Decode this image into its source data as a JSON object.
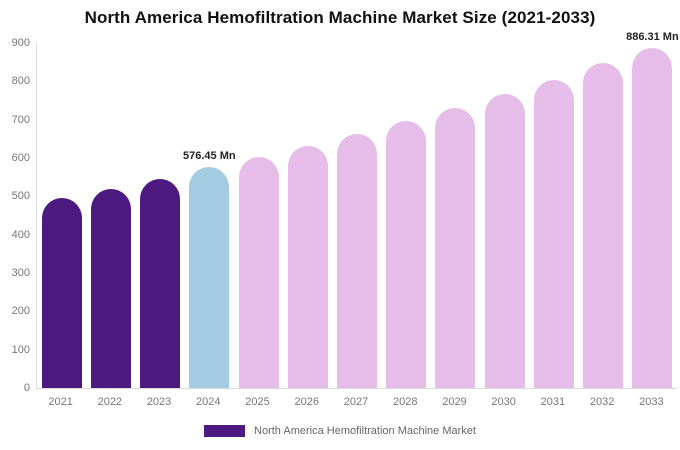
{
  "title": "North America Hemofiltration Machine Market Size (2021-2033)",
  "colors": {
    "historical_bar": "#4C1A80",
    "base_year_bar": "#A3CBE2",
    "forecast_bar": "#E6BCE8",
    "title_text": "#111111",
    "axis_text": "#777777",
    "point_label_text": "#222222",
    "legend_text": "#666666",
    "axis_line": "#dcdcdc"
  },
  "chart_data": {
    "type": "bar",
    "title": "North America Hemofiltration Machine Market Size (2021-2033)",
    "xlabel": "",
    "ylabel": "",
    "ylim": [
      0,
      900
    ],
    "ytick_step": 100,
    "ytick_labels": [
      "0",
      "100",
      "200",
      "300",
      "400",
      "500",
      "600",
      "700",
      "800",
      "900"
    ],
    "grid": false,
    "legend_position": "bottom",
    "categories": [
      "2021",
      "2022",
      "2023",
      "2024",
      "2025",
      "2026",
      "2027",
      "2028",
      "2029",
      "2030",
      "2031",
      "2032",
      "2033"
    ],
    "values": [
      495,
      519,
      545,
      576.45,
      603,
      631,
      663,
      697,
      730,
      767,
      803,
      848,
      886.31
    ],
    "bar_roles": [
      "historical",
      "historical",
      "historical",
      "base_year",
      "forecast",
      "forecast",
      "forecast",
      "forecast",
      "forecast",
      "forecast",
      "forecast",
      "forecast",
      "forecast"
    ],
    "point_labels": [
      "",
      "",
      "",
      "576.45 Mn",
      "",
      "",
      "",
      "",
      "",
      "",
      "",
      "",
      "886.31 Mn"
    ],
    "series": [
      {
        "name": "North America Hemofiltration Machine Market",
        "values": [
          495,
          519,
          545,
          576.45,
          603,
          631,
          663,
          697,
          730,
          767,
          803,
          848,
          886.31
        ]
      }
    ]
  },
  "legend": {
    "label": "North America Hemofiltration Machine Market",
    "swatch_color": "#4C1A80"
  }
}
